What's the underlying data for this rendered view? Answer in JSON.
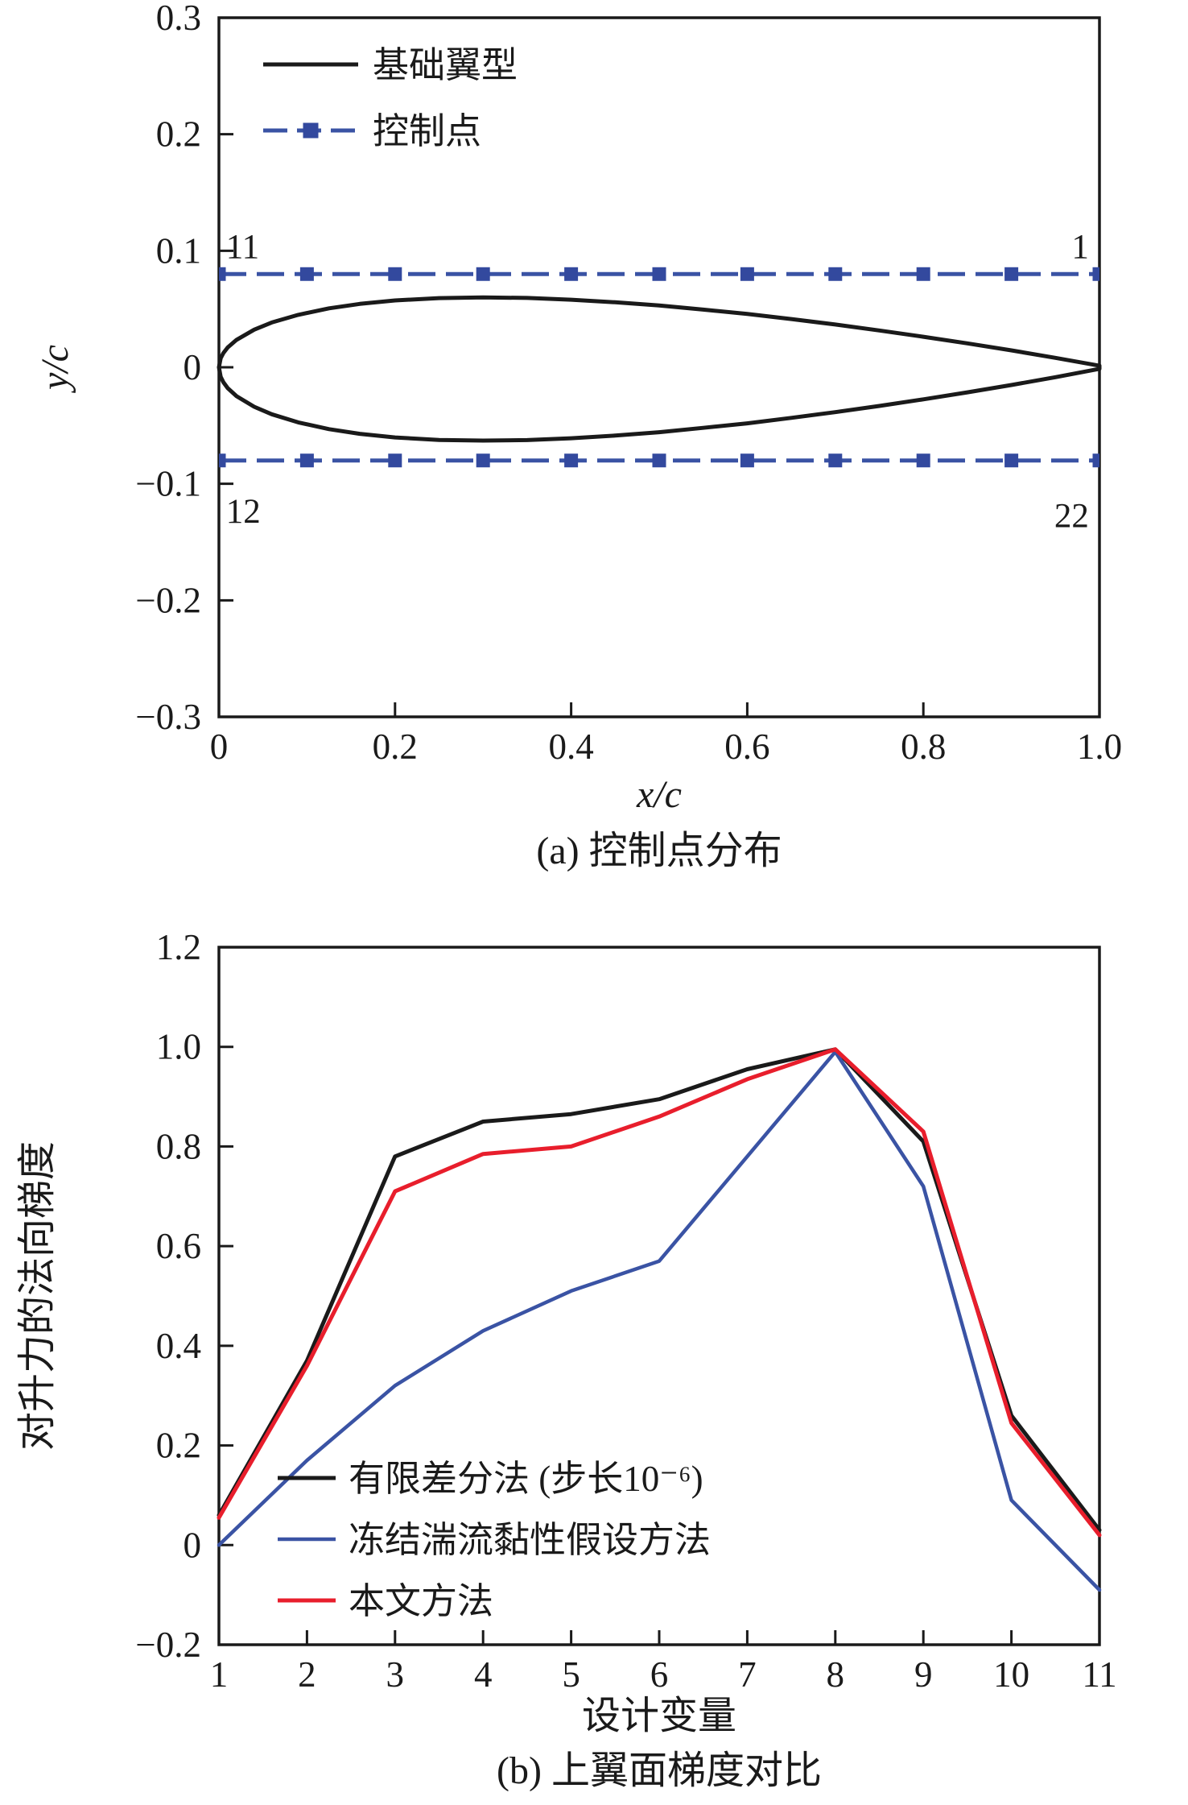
{
  "figure": {
    "background": "#ffffff",
    "colors": {
      "black": "#1a1a1a",
      "blue": "#3a53a4",
      "red": "#e81e2c"
    }
  },
  "chart_data": [
    {
      "type": "line",
      "caption": "(a) 控制点分布",
      "xlabel": "x/c",
      "ylabel": "y/c",
      "xlim": [
        0,
        1.0
      ],
      "ylim": [
        -0.3,
        0.3
      ],
      "grid": false,
      "legend_position": "top-left-inside",
      "xticks": {
        "values": [
          0,
          0.2,
          0.4,
          0.6,
          0.8,
          1.0
        ],
        "labels": [
          "0",
          "0.2",
          "0.4",
          "0.6",
          "0.8",
          "1.0"
        ]
      },
      "yticks": {
        "values": [
          0.3,
          0.2,
          0.1,
          0,
          -0.1,
          -0.2,
          -0.3
        ],
        "labels": [
          "0.3",
          "0.2",
          "0.1",
          "0",
          "−0.1",
          "−0.2",
          "−0.3"
        ]
      },
      "legend": [
        {
          "label": "基础翼型",
          "color": "#1a1a1a",
          "style": "solid",
          "width": 5
        },
        {
          "label": "控制点",
          "color": "#3a53a4",
          "style": "dash-square",
          "width": 5
        }
      ],
      "airfoil": {
        "name": "基础翼型",
        "color": "#1a1a1a",
        "x": [
          0,
          0.002,
          0.005,
          0.01,
          0.02,
          0.04,
          0.06,
          0.09,
          0.125,
          0.16,
          0.2,
          0.25,
          0.3,
          0.35,
          0.4,
          0.45,
          0.5,
          0.55,
          0.6,
          0.65,
          0.7,
          0.75,
          0.8,
          0.85,
          0.9,
          0.95,
          1.0
        ],
        "upper": [
          0,
          0.0078,
          0.0122,
          0.017,
          0.0236,
          0.0323,
          0.0384,
          0.045,
          0.0506,
          0.0544,
          0.0574,
          0.0594,
          0.0599,
          0.0595,
          0.058,
          0.0558,
          0.0531,
          0.0495,
          0.0458,
          0.0414,
          0.0367,
          0.0316,
          0.0262,
          0.0205,
          0.0145,
          0.0081,
          0.0013
        ],
        "lower": [
          0,
          -0.0082,
          -0.0128,
          -0.0179,
          -0.0248,
          -0.0339,
          -0.0403,
          -0.0473,
          -0.0531,
          -0.0571,
          -0.0602,
          -0.0624,
          -0.0629,
          -0.0625,
          -0.0609,
          -0.0586,
          -0.0557,
          -0.052,
          -0.0481,
          -0.0434,
          -0.0385,
          -0.0332,
          -0.0275,
          -0.0215,
          -0.0152,
          -0.0085,
          -0.0013
        ]
      },
      "control_points": {
        "name": "控制点",
        "color": "#3a53a4",
        "x": [
          0,
          0.1,
          0.2,
          0.3,
          0.4,
          0.5,
          0.6,
          0.7,
          0.8,
          0.9,
          1.0
        ],
        "y_top": 0.08,
        "y_bottom": -0.08
      },
      "annotations": [
        {
          "text": "11",
          "x": 0.008,
          "y": 0.104,
          "anchor": "start"
        },
        {
          "text": "1",
          "x": 0.988,
          "y": 0.104,
          "anchor": "end"
        },
        {
          "text": "12",
          "x": 0.008,
          "y": -0.123,
          "anchor": "start"
        },
        {
          "text": "22",
          "x": 0.988,
          "y": -0.127,
          "anchor": "end"
        }
      ]
    },
    {
      "type": "line",
      "caption": "(b) 上翼面梯度对比",
      "xlabel": "设计变量",
      "ylabel": "对升力的法向梯度",
      "xlim": [
        1,
        11
      ],
      "ylim": [
        -0.2,
        1.2
      ],
      "grid": false,
      "legend_position": "bottom-left-inside",
      "xticks": {
        "values": [
          1,
          2,
          3,
          4,
          5,
          6,
          7,
          8,
          9,
          10,
          11
        ],
        "labels": [
          "1",
          "2",
          "3",
          "4",
          "5",
          "6",
          "7",
          "8",
          "9",
          "10",
          "11"
        ]
      },
      "yticks": {
        "values": [
          1.2,
          1.0,
          0.8,
          0.6,
          0.4,
          0.2,
          0,
          -0.2
        ],
        "labels": [
          "1.2",
          "1.0",
          "0.8",
          "0.6",
          "0.4",
          "0.2",
          "0",
          "−0.2"
        ]
      },
      "x": [
        1,
        2,
        3,
        4,
        5,
        6,
        7,
        8,
        9,
        10,
        11
      ],
      "series": [
        {
          "name": "有限差分法 (步长10⁻⁶)",
          "color": "#1a1a1a",
          "width": 5,
          "values": [
            0.06,
            0.37,
            0.78,
            0.85,
            0.865,
            0.895,
            0.955,
            0.995,
            0.81,
            0.26,
            0.03
          ]
        },
        {
          "name": "冻结湍流黏性假设方法",
          "color": "#3a53a4",
          "width": 4.5,
          "values": [
            0.0,
            0.17,
            0.32,
            0.43,
            0.51,
            0.57,
            0.78,
            0.99,
            0.72,
            0.09,
            -0.09
          ]
        },
        {
          "name": "本文方法",
          "color": "#e81e2c",
          "width": 5,
          "values": [
            0.055,
            0.36,
            0.71,
            0.785,
            0.8,
            0.86,
            0.935,
            0.995,
            0.83,
            0.245,
            0.02
          ]
        }
      ],
      "legend": [
        {
          "label": "有限差分法 (步长10⁻⁶)",
          "color": "#1a1a1a",
          "style": "solid",
          "width": 5
        },
        {
          "label": "冻结湍流黏性假设方法",
          "color": "#3a53a4",
          "style": "solid",
          "width": 4.5
        },
        {
          "label": "本文方法",
          "color": "#e81e2c",
          "style": "solid",
          "width": 5
        }
      ]
    }
  ]
}
